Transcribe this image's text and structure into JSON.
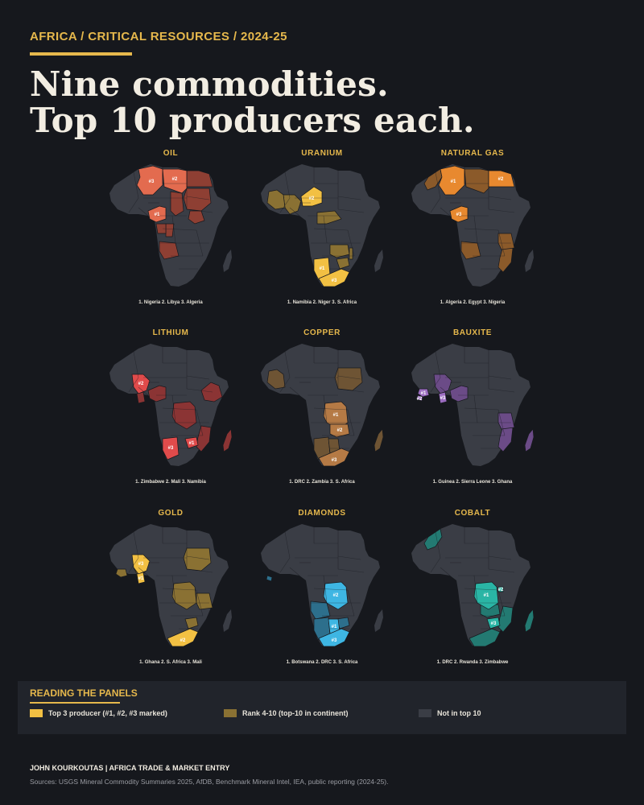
{
  "header": {
    "kicker": "AFRICA  /  CRITICAL RESOURCES  /  2024-25",
    "headline_line1": "Nine commodities.",
    "headline_line2": "Top 10 producers each."
  },
  "colors": {
    "background": "#16181d",
    "accent": "#e6b84c",
    "land_not_in_top10": "#3a3d45"
  },
  "panels": [
    {
      "title": "OIL",
      "caption": "1. Nigeria  2. Libya  3. Algeria",
      "colors": {
        "top3": "#e36b4f",
        "rank4_10": "#8e3f33"
      },
      "top3": [
        {
          "region": "nigeria",
          "rank": "#1",
          "label": "#1"
        },
        {
          "region": "libya",
          "rank": "#2",
          "label": "#2"
        },
        {
          "region": "algeria",
          "rank": "#3",
          "label": "#3"
        }
      ],
      "rank4_10": [
        "egypt",
        "angola",
        "chad",
        "congo",
        "gabon",
        "south_sudan",
        "sudan"
      ]
    },
    {
      "title": "URANIUM",
      "caption": "1. Namibia  2. Niger  3. S. Africa",
      "colors": {
        "top3": "#f2c043",
        "rank4_10": "#8a7133"
      },
      "top3": [
        {
          "region": "namibia",
          "rank": "#1",
          "label": "#1"
        },
        {
          "region": "niger",
          "rank": "#2",
          "label": "#2"
        },
        {
          "region": "south_africa",
          "rank": "#3",
          "label": "#3"
        }
      ],
      "rank4_10": [
        "mali",
        "mauritania",
        "cameroon_car",
        "zambia",
        "zimbabwe",
        "malawi"
      ]
    },
    {
      "title": "NATURAL GAS",
      "caption": "1. Algeria  2. Egypt  3. Nigeria",
      "colors": {
        "top3": "#e8892f",
        "rank4_10": "#8b5a2a"
      },
      "top3": [
        {
          "region": "algeria",
          "rank": "#1",
          "label": "#1"
        },
        {
          "region": "egypt",
          "rank": "#2",
          "label": "#2"
        },
        {
          "region": "nigeria",
          "rank": "#3",
          "label": "#3"
        }
      ],
      "rank4_10": [
        "libya",
        "angola",
        "mozambique",
        "tanzania",
        "morocco"
      ]
    },
    {
      "title": "LITHIUM",
      "caption": "1. Zimbabwe  2. Mali  3. Namibia",
      "colors": {
        "top3": "#e04b4b",
        "rank4_10": "#8b3434"
      },
      "top3": [
        {
          "region": "zimbabwe",
          "rank": "#1",
          "label": "#1"
        },
        {
          "region": "mali",
          "rank": "#2",
          "label": "#2"
        },
        {
          "region": "namibia",
          "rank": "#3",
          "label": "#3"
        }
      ],
      "rank4_10": [
        "drc",
        "nigeria",
        "ethiopia",
        "mozambique",
        "madagascar",
        "ghana"
      ]
    },
    {
      "title": "COPPER",
      "caption": "1. DRC  2. Zambia  3. S. Africa",
      "colors": {
        "top3": "#b57a45",
        "rank4_10": "#6e5434"
      },
      "top3": [
        {
          "region": "drc",
          "rank": "#1",
          "label": "#1"
        },
        {
          "region": "zambia",
          "rank": "#2",
          "label": "#2"
        },
        {
          "region": "south_africa",
          "rank": "#3",
          "label": "#3"
        }
      ],
      "rank4_10": [
        "mauritania",
        "namibia",
        "botswana",
        "madagascar",
        "sudan"
      ]
    },
    {
      "title": "BAUXITE",
      "caption": "1. Guinea  2. Sierra Leone  3. Ghana",
      "colors": {
        "top3": "#9b6cc0",
        "rank4_10": "#6b4b87"
      },
      "top3": [
        {
          "region": "guinea",
          "rank": "#1",
          "label": "#1"
        },
        {
          "region": "sierra_leone",
          "rank": "#2",
          "label": "#2"
        },
        {
          "region": "ghana",
          "rank": "#3",
          "label": "#3"
        }
      ],
      "rank4_10": [
        "mali",
        "nigeria",
        "mozambique",
        "madagascar",
        "tanzania"
      ]
    },
    {
      "title": "GOLD",
      "caption": "1. Ghana  2. S. Africa  3. Mali",
      "colors": {
        "top3": "#f2c043",
        "rank4_10": "#8a7133"
      },
      "top3": [
        {
          "region": "ghana",
          "rank": "#1",
          "label": "#1"
        },
        {
          "region": "south_africa",
          "rank": "#2",
          "label": "#2"
        },
        {
          "region": "mali",
          "rank": "#3",
          "label": "#3"
        }
      ],
      "rank4_10": [
        "burkina_faso",
        "sudan",
        "drc",
        "guinea",
        "zimbabwe",
        "tanzania"
      ]
    },
    {
      "title": "DIAMONDS",
      "caption": "1. Botswana  2. DRC  3. S. Africa",
      "colors": {
        "top3": "#3eb6e3",
        "rank4_10": "#2d6f8c"
      },
      "top3": [
        {
          "region": "botswana",
          "rank": "#1",
          "label": "#1"
        },
        {
          "region": "drc",
          "rank": "#2",
          "label": "#2"
        },
        {
          "region": "south_africa",
          "rank": "#3",
          "label": "#3"
        }
      ],
      "rank4_10": [
        "angola",
        "namibia",
        "zimbabwe",
        "sierra_leone"
      ]
    },
    {
      "title": "COBALT",
      "caption": "1. DRC  2. Rwanda  3. Zimbabwe",
      "colors": {
        "top3": "#2ab5a5",
        "rank4_10": "#237a72"
      },
      "top3": [
        {
          "region": "drc",
          "rank": "#1",
          "label": "#1"
        },
        {
          "region": "rwanda",
          "rank": "#2",
          "label": "#2"
        },
        {
          "region": "zimbabwe",
          "rank": "#3",
          "label": "#3"
        }
      ],
      "rank4_10": [
        "zambia",
        "south_africa",
        "madagascar",
        "morocco",
        "mozambique"
      ]
    }
  ],
  "legend": {
    "title": "READING THE PANELS",
    "items": [
      {
        "label": "Top 3 producer (#1, #2, #3 marked)",
        "color": "#f2c043"
      },
      {
        "label": "Rank 4-10 (top-10 in continent)",
        "color": "#8a7133"
      },
      {
        "label": "Not in top 10",
        "color": "#3a3d45"
      }
    ]
  },
  "footer": {
    "author": "JOHN KOURKOUTAS  |  AFRICA TRADE & MARKET ENTRY",
    "sources": "Sources: USGS Mineral Commodity Summaries 2025, AfDB, Benchmark Mineral Intel, IEA, public reporting (2024-25)."
  }
}
